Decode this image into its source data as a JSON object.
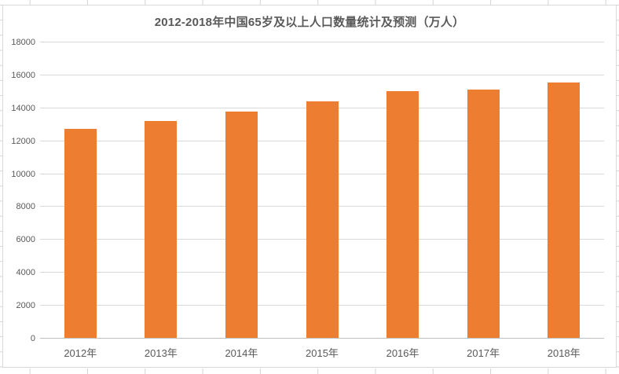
{
  "chart_data": {
    "type": "bar",
    "title": "2012-2018年中国65岁及以上人口数量统计及预测（万人）",
    "categories": [
      "2012年",
      "2013年",
      "2014年",
      "2015年",
      "2016年",
      "2017年",
      "2018年"
    ],
    "values": [
      12714,
      13161,
      13755,
      14386,
      15003,
      15100,
      15500
    ],
    "xlabel": "",
    "ylabel": "",
    "ylim": [
      0,
      18000
    ],
    "yticks": [
      0,
      2000,
      4000,
      6000,
      8000,
      10000,
      12000,
      14000,
      16000,
      18000
    ],
    "grid": true,
    "legend": false,
    "bar_color": "#ED7D31",
    "gridline_color": "#D9D9D9",
    "axis_line_color": "#BFBFBF",
    "text_color": "#595959"
  }
}
